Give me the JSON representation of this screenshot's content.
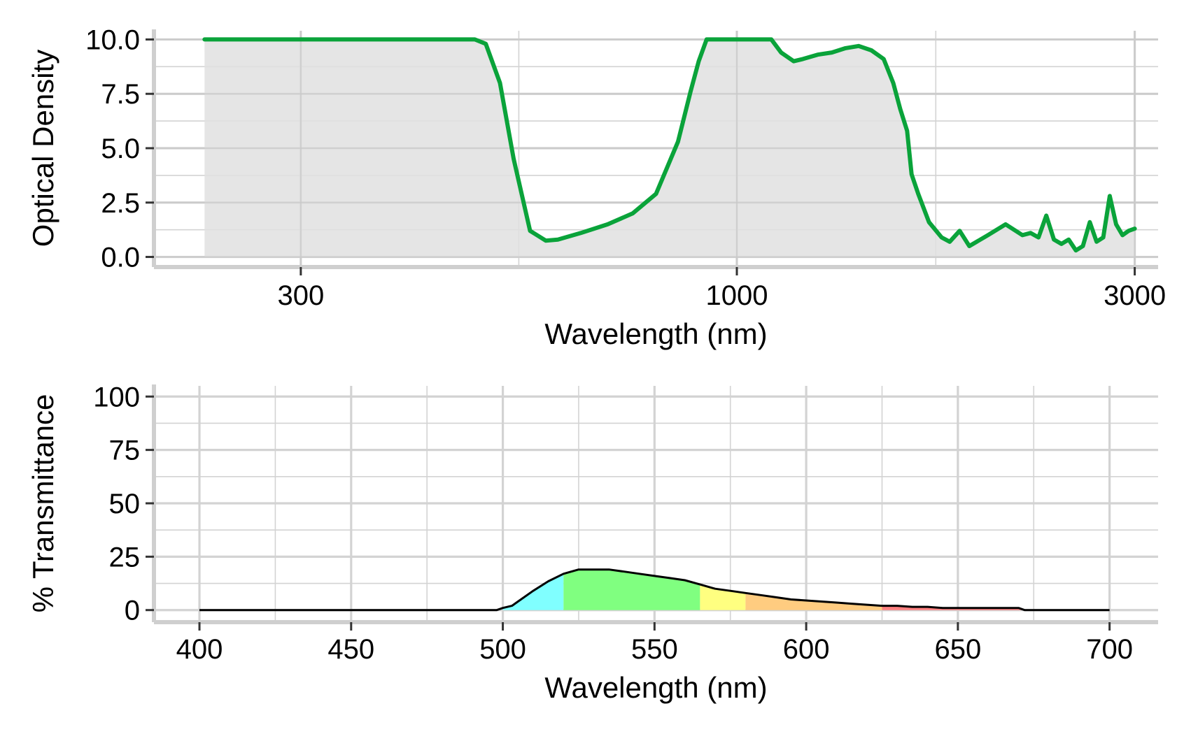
{
  "chart_data": [
    {
      "type": "area",
      "xlabel": "Wavelength (nm)",
      "ylabel": "Optical Density",
      "x_scale": "log",
      "xlim": [
        200,
        3200
      ],
      "ylim": [
        -0.4,
        10.4
      ],
      "x_ticks": [
        300,
        1000,
        3000
      ],
      "x_tick_labels": [
        "300",
        "1000",
        "3000"
      ],
      "y_ticks": [
        0,
        2.5,
        5,
        7.5,
        10
      ],
      "y_tick_labels": [
        "0.0",
        "2.5",
        "5.0",
        "7.5",
        "10.0"
      ],
      "grid": true,
      "legend": "none",
      "colors": {
        "line": "#0aa33a",
        "fill": "#e0e0e0",
        "grid": "#d3d3d3"
      },
      "series": [
        {
          "x": [
            230,
            300,
            400,
            485,
            500,
            520,
            540,
            565,
            590,
            610,
            650,
            700,
            750,
            800,
            850,
            880,
            900,
            920,
            950,
            1000,
            1060,
            1100,
            1130,
            1170,
            1200,
            1250,
            1300,
            1350,
            1400,
            1450,
            1500,
            1540,
            1570,
            1600,
            1620,
            1650,
            1700,
            1760,
            1800,
            1850,
            1900,
            2000,
            2100,
            2200,
            2250,
            2300,
            2350,
            2400,
            2450,
            2500,
            2550,
            2600,
            2650,
            2700,
            2750,
            2800,
            2850,
            2900,
            2950,
            3000
          ],
          "y": [
            10,
            10,
            10,
            10,
            9.8,
            8,
            4.5,
            1.2,
            0.75,
            0.8,
            1.1,
            1.5,
            2.0,
            2.9,
            5.3,
            7.6,
            9.0,
            10,
            10,
            10,
            10,
            10,
            9.4,
            9.0,
            9.1,
            9.3,
            9.4,
            9.6,
            9.7,
            9.5,
            9.1,
            8.0,
            6.8,
            5.8,
            3.8,
            2.9,
            1.6,
            0.9,
            0.7,
            1.2,
            0.5,
            1.0,
            1.5,
            1.0,
            1.1,
            0.9,
            1.9,
            0.8,
            0.6,
            0.8,
            0.3,
            0.5,
            1.6,
            0.7,
            0.9,
            2.8,
            1.5,
            1.0,
            1.2,
            1.3
          ]
        }
      ]
    },
    {
      "type": "area",
      "xlabel": "Wavelength (nm)",
      "ylabel": "% Transmittance",
      "xlim": [
        385,
        716
      ],
      "ylim": [
        -5,
        105
      ],
      "x_ticks": [
        400,
        450,
        500,
        550,
        600,
        650,
        700
      ],
      "x_tick_labels": [
        "400",
        "450",
        "500",
        "550",
        "600",
        "650",
        "700"
      ],
      "y_ticks": [
        0,
        25,
        50,
        75,
        100
      ],
      "y_tick_labels": [
        "0",
        "25",
        "50",
        "75",
        "100"
      ],
      "grid": true,
      "legend": "none",
      "colors": {
        "line": "#000000",
        "grid": "#d3d3d3"
      },
      "bands": [
        {
          "from": 500,
          "to": 520,
          "color": "#80ffff"
        },
        {
          "from": 520,
          "to": 565,
          "color": "#80ff80"
        },
        {
          "from": 565,
          "to": 580,
          "color": "#ffff80"
        },
        {
          "from": 580,
          "to": 625,
          "color": "#ffcc80"
        },
        {
          "from": 625,
          "to": 700,
          "color": "#ff8080"
        }
      ],
      "series": [
        {
          "x": [
            400,
            430,
            460,
            490,
            498,
            500,
            503,
            505,
            510,
            515,
            520,
            525,
            530,
            535,
            540,
            545,
            550,
            555,
            560,
            565,
            570,
            575,
            580,
            585,
            590,
            595,
            600,
            605,
            610,
            615,
            620,
            625,
            630,
            635,
            640,
            645,
            650,
            655,
            660,
            665,
            670,
            672,
            680,
            690,
            700
          ],
          "y": [
            0,
            0,
            0,
            0,
            0,
            1,
            2,
            4,
            9,
            13.5,
            17,
            19,
            19,
            19,
            18,
            17,
            16,
            15,
            14,
            12,
            10,
            9,
            8,
            7,
            6,
            5,
            4.5,
            4,
            3.5,
            3,
            2.5,
            2,
            2,
            1.5,
            1.5,
            1,
            1,
            1,
            1,
            1,
            1,
            0,
            0,
            0,
            0
          ]
        }
      ]
    }
  ]
}
